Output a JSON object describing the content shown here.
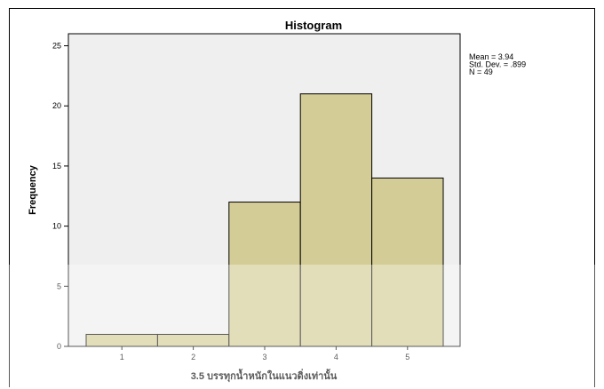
{
  "chart_data": {
    "type": "bar",
    "title": "Histogram",
    "categories": [
      "1",
      "2",
      "3",
      "4",
      "5"
    ],
    "values": [
      1,
      1,
      12,
      21,
      14
    ],
    "xlabel": "3.5 บรรทุกน้ำหนักในแนวดิ่งเท่านั้น",
    "ylabel": "Frequency",
    "ylim": [
      0,
      26
    ],
    "yticks": [
      "0",
      "5",
      "10",
      "15",
      "20",
      "25"
    ],
    "bar_color": "#d4cc96",
    "plot_background": "#efefef",
    "grid": false,
    "stats": [
      "Mean = 3.94",
      "Std. Dev. = .899",
      "N = 49"
    ]
  }
}
